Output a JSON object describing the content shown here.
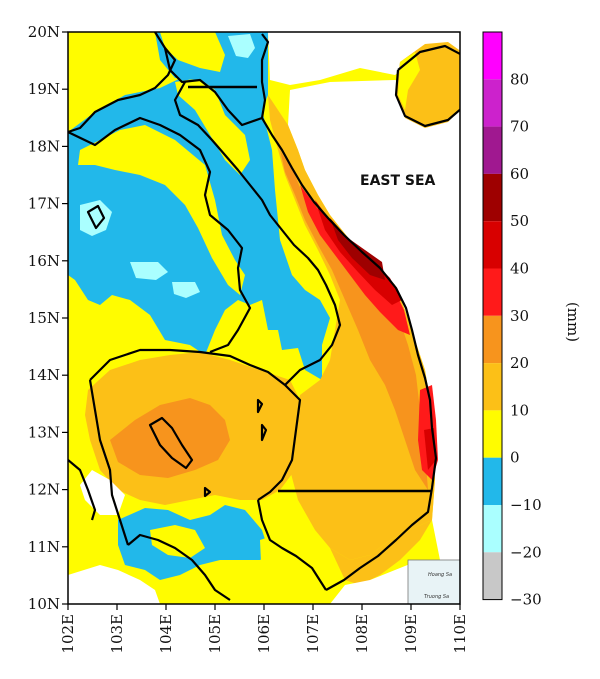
{
  "map": {
    "lat_labels": [
      "20N",
      "19N",
      "18N",
      "17N",
      "16N",
      "15N",
      "14N",
      "13N",
      "12N",
      "11N",
      "10N"
    ],
    "lon_labels": [
      "102E",
      "103E",
      "104E",
      "105E",
      "106E",
      "107E",
      "108E",
      "109E",
      "110E"
    ],
    "sea_label": "EAST SEA",
    "inset_labels": [
      "Hoang Sa",
      "Truong Sa"
    ]
  },
  "colorbar": {
    "unit": "(mm)",
    "tick_labels": [
      "80",
      "70",
      "60",
      "50",
      "40",
      "30",
      "20",
      "10",
      "0",
      "−10",
      "−20",
      "−30"
    ],
    "colors": [
      "#ff00ff",
      "#cc22cc",
      "#a01890",
      "#9e0000",
      "#d80000",
      "#ff1a1a",
      "#f7941d",
      "#fcc017",
      "#fffc00",
      "#22b8ea",
      "#aaffff",
      "#c8c8c8"
    ]
  },
  "colors": {
    "land_minus10_0": "#22b8ea",
    "land_0_10": "#fffc00",
    "land_10_20": "#fcc017",
    "land_20_30": "#f7941d",
    "land_30_40": "#ff1a1a",
    "land_40_50": "#d80000",
    "land_50_60": "#9e0000",
    "light_cyan": "#aaffff"
  }
}
